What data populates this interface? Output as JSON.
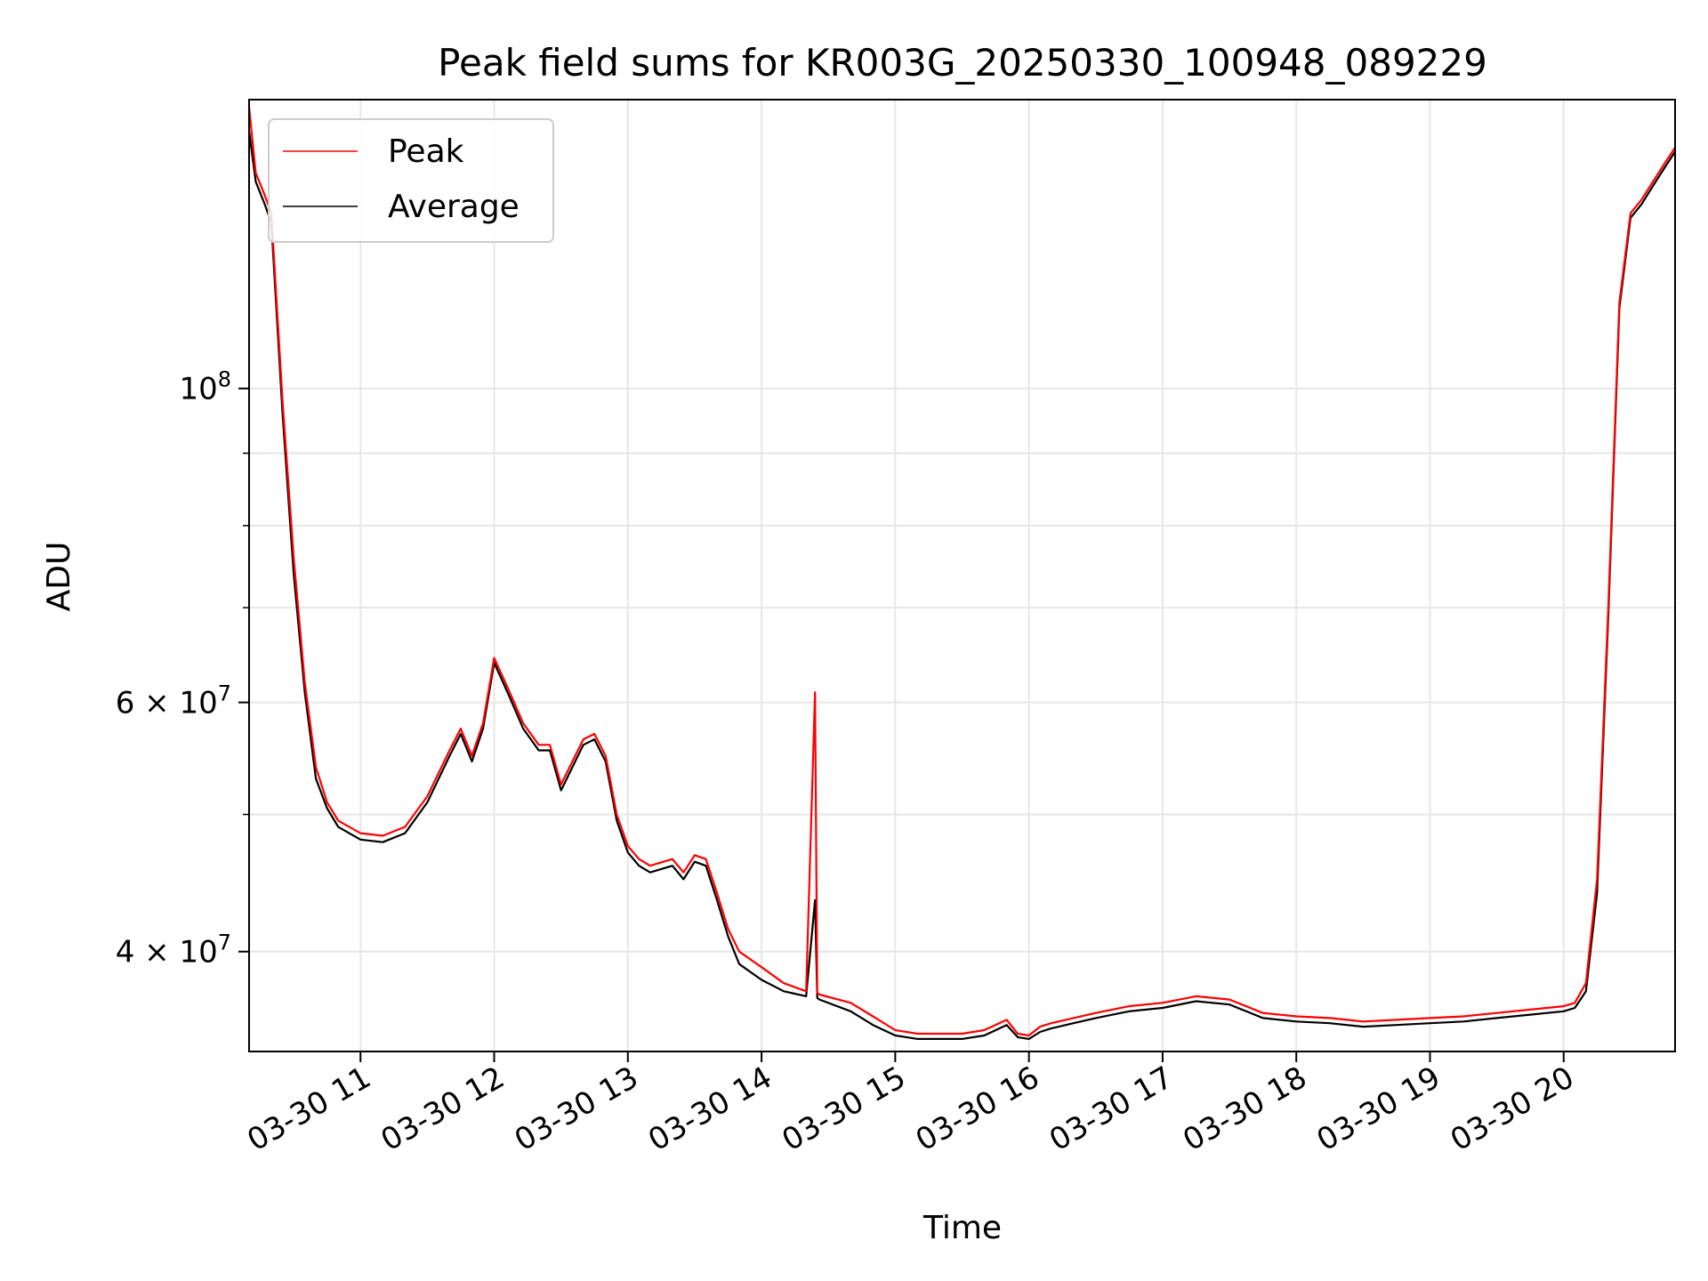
{
  "chart_data": {
    "type": "line",
    "title": "Peak field sums for KR003G_20250330_100948_089229",
    "xlabel": "Time",
    "ylabel": "ADU",
    "yscale": "log",
    "xlim": [
      "03-30 10:10",
      "03-30 20:50"
    ],
    "ylim": [
      34000000,
      160000000
    ],
    "grid": true,
    "legend_position": "top-left",
    "x_ticks": [
      "03-30 11",
      "03-30 12",
      "03-30 13",
      "03-30 14",
      "03-30 15",
      "03-30 16",
      "03-30 17",
      "03-30 18",
      "03-30 19",
      "03-30 20"
    ],
    "y_ticks": [
      {
        "label": "10",
        "sup": "8",
        "value": 100000000
      },
      {
        "label": "6 × 10",
        "sup": "7",
        "value": 60000000
      },
      {
        "label": "4 × 10",
        "sup": "7",
        "value": 40000000
      }
    ],
    "x": [
      "03-30 10:10",
      "03-30 10:13",
      "03-30 10:17",
      "03-30 10:20",
      "03-30 10:25",
      "03-30 10:30",
      "03-30 10:35",
      "03-30 10:40",
      "03-30 10:45",
      "03-30 10:50",
      "03-30 11:00",
      "03-30 11:10",
      "03-30 11:20",
      "03-30 11:30",
      "03-30 11:40",
      "03-30 11:45",
      "03-30 11:50",
      "03-30 11:55",
      "03-30 12:00",
      "03-30 12:07",
      "03-30 12:13",
      "03-30 12:20",
      "03-30 12:25",
      "03-30 12:30",
      "03-30 12:40",
      "03-30 12:45",
      "03-30 12:50",
      "03-30 12:55",
      "03-30 13:00",
      "03-30 13:05",
      "03-30 13:10",
      "03-30 13:20",
      "03-30 13:25",
      "03-30 13:30",
      "03-30 13:35",
      "03-30 13:40",
      "03-30 13:45",
      "03-30 13:50",
      "03-30 14:00",
      "03-30 14:10",
      "03-30 14:20",
      "03-30 14:24",
      "03-30 14:25",
      "03-30 14:26",
      "03-30 14:40",
      "03-30 14:50",
      "03-30 15:00",
      "03-30 15:10",
      "03-30 15:20",
      "03-30 15:30",
      "03-30 15:40",
      "03-30 15:50",
      "03-30 15:55",
      "03-30 16:00",
      "03-30 16:05",
      "03-30 16:10",
      "03-30 16:20",
      "03-30 16:30",
      "03-30 16:45",
      "03-30 17:00",
      "03-30 17:15",
      "03-30 17:30",
      "03-30 17:45",
      "03-30 18:00",
      "03-30 18:15",
      "03-30 18:30",
      "03-30 18:45",
      "03-30 19:00",
      "03-30 19:15",
      "03-30 19:30",
      "03-30 19:45",
      "03-30 20:00",
      "03-30 20:05",
      "03-30 20:10",
      "03-30 20:15",
      "03-30 20:20",
      "03-30 20:25",
      "03-30 20:30",
      "03-30 20:35",
      "03-30 20:40",
      "03-30 20:45",
      "03-30 20:50"
    ],
    "series": [
      {
        "name": "Peak",
        "color": "#ff0000",
        "values": [
          158000000,
          142000000,
          137000000,
          133000000,
          98000000,
          76000000,
          62000000,
          54000000,
          51000000,
          49500000,
          48500000,
          48300000,
          49000000,
          51500000,
          55500000,
          57500000,
          55000000,
          58000000,
          64500000,
          61000000,
          58000000,
          56000000,
          56000000,
          52500000,
          56500000,
          57000000,
          55000000,
          50000000,
          47500000,
          46500000,
          46000000,
          46500000,
          45500000,
          46800000,
          46500000,
          44000000,
          41500000,
          40000000,
          39000000,
          38000000,
          37500000,
          61000000,
          37400000,
          37300000,
          36800000,
          36000000,
          35200000,
          35000000,
          35000000,
          35000000,
          35200000,
          35800000,
          35000000,
          34900000,
          35400000,
          35600000,
          35900000,
          36200000,
          36600000,
          36800000,
          37200000,
          37000000,
          36200000,
          36000000,
          35900000,
          35700000,
          35800000,
          35900000,
          36000000,
          36200000,
          36400000,
          36600000,
          36800000,
          38000000,
          45000000,
          70000000,
          115000000,
          133000000,
          136000000,
          140000000,
          144000000,
          148000000
        ]
      },
      {
        "name": "Average",
        "color": "#000000",
        "values": [
          152000000,
          140000000,
          135000000,
          131000000,
          96000000,
          74000000,
          61000000,
          53000000,
          50500000,
          49000000,
          48000000,
          47800000,
          48500000,
          51000000,
          55000000,
          57000000,
          54500000,
          57500000,
          64000000,
          60500000,
          57500000,
          55500000,
          55500000,
          52000000,
          56000000,
          56500000,
          54500000,
          49500000,
          47000000,
          46000000,
          45500000,
          46000000,
          45000000,
          46300000,
          46000000,
          43500000,
          41000000,
          39200000,
          38200000,
          37500000,
          37200000,
          43500000,
          37100000,
          37000000,
          36300000,
          35500000,
          34900000,
          34700000,
          34700000,
          34700000,
          34900000,
          35500000,
          34800000,
          34700000,
          35100000,
          35300000,
          35600000,
          35900000,
          36300000,
          36500000,
          36900000,
          36700000,
          35900000,
          35700000,
          35600000,
          35400000,
          35500000,
          35600000,
          35700000,
          35900000,
          36100000,
          36300000,
          36500000,
          37500000,
          44000000,
          69000000,
          114000000,
          132000000,
          135000000,
          139000000,
          143000000,
          147000000
        ]
      }
    ]
  }
}
